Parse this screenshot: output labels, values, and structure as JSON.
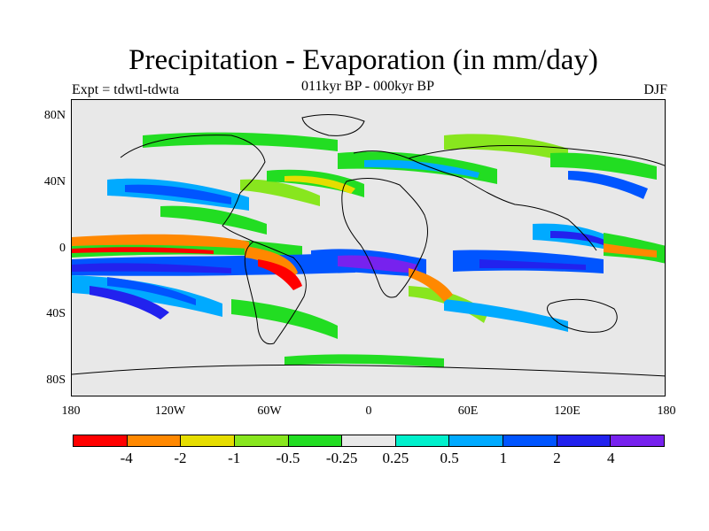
{
  "title": "Precipitation - Evaporation (in mm/day)",
  "subtitle": "011kyr BP - 000kyr BP",
  "experiment_label": "Expt = tdwtl-tdwta",
  "season_label": "DJF",
  "lat_ticks": [
    "80N",
    "40N",
    "0",
    "40S",
    "80S"
  ],
  "lon_ticks": [
    "180",
    "120W",
    "60W",
    "0",
    "60E",
    "120E",
    "180"
  ],
  "colorbar": {
    "colors": [
      "#ff0000",
      "#ff8800",
      "#e6dd00",
      "#88e61e",
      "#22dd22",
      "#e8e8e8",
      "#00f0cc",
      "#00aaff",
      "#0055ff",
      "#2222ee",
      "#7722ee"
    ],
    "labels": [
      "-4",
      "-2",
      "-1",
      "-0.5",
      "-0.25",
      "0.25",
      "0.5",
      "1",
      "2",
      "4"
    ]
  },
  "colors": {
    "land_outline": "#000000",
    "background": "#e8e8e8"
  }
}
